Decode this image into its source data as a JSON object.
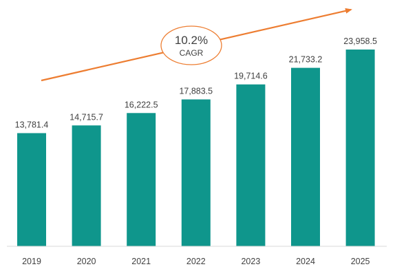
{
  "chart_data": {
    "type": "bar",
    "categories": [
      "2019",
      "2020",
      "2021",
      "2022",
      "2023",
      "2024",
      "2025"
    ],
    "values": [
      13781.4,
      14715.7,
      16222.5,
      17883.5,
      19714.6,
      21733.2,
      23958.5
    ],
    "value_labels": [
      "13,781.4",
      "14,715.7",
      "16,222.5",
      "17,883.5",
      "19,714.6",
      "21,733.2",
      "23,958.5"
    ],
    "title": "",
    "xlabel": "",
    "ylabel": "",
    "ylim": [
      0,
      24000
    ],
    "grid": false,
    "legend": "none",
    "bar_color": "#0f968c",
    "annotation": {
      "value": "10.2%",
      "label": "CAGR",
      "arrow_color": "#ed7d31",
      "ellipse_color": "#ed7d31"
    }
  }
}
